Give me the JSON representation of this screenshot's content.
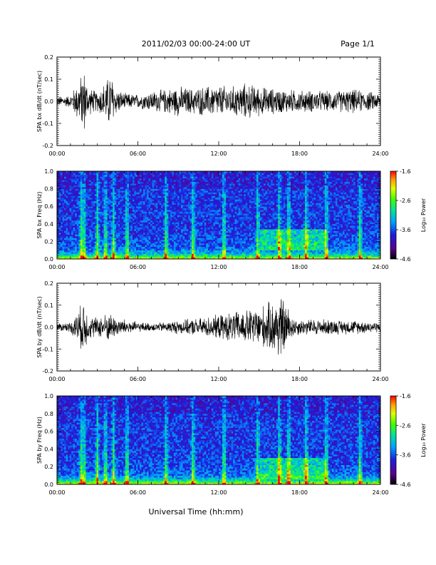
{
  "header": {
    "title": "2011/02/03  00:00-24:00 UT",
    "page": "Page 1/1"
  },
  "xlabel": "Universal Time (hh:mm)",
  "chart_data": [
    {
      "type": "line",
      "ylabel": "SPA bx dB/dt (nT/sec)",
      "xlim": [
        0,
        24
      ],
      "ylim": [
        -0.2,
        0.2
      ],
      "x_tick_labels": [
        "00:00",
        "06:00",
        "12:00",
        "18:00",
        "24:00"
      ],
      "y_tick_labels": [
        "-0.2",
        "-0.1",
        "0.0",
        "0.1",
        "0.2"
      ],
      "envelope": {
        "x_hours": [
          0,
          1,
          1.8,
          2,
          2.3,
          3,
          3.7,
          4,
          4.3,
          5,
          6,
          7,
          8,
          9,
          10,
          11,
          12,
          13,
          14,
          15,
          16,
          17,
          18,
          19,
          20,
          21,
          22,
          23,
          24
        ],
        "amplitude": [
          0.025,
          0.03,
          0.13,
          0.17,
          0.07,
          0.05,
          0.11,
          0.15,
          0.07,
          0.04,
          0.035,
          0.05,
          0.06,
          0.075,
          0.065,
          0.075,
          0.08,
          0.075,
          0.09,
          0.075,
          0.065,
          0.06,
          0.055,
          0.055,
          0.05,
          0.055,
          0.06,
          0.05,
          0.04
        ]
      }
    },
    {
      "type": "heatmap",
      "ylabel": "SPA bx Freq (Hz)",
      "xlim": [
        0,
        24
      ],
      "ylim": [
        0,
        1.0
      ],
      "x_tick_labels": [
        "00:00",
        "06:00",
        "12:00",
        "18:00",
        "24:00"
      ],
      "y_tick_labels": [
        "0.0",
        "0.2",
        "0.4",
        "0.6",
        "0.8",
        "1.0"
      ],
      "colorbar": {
        "label": "Log₁₀ Power",
        "ticks": [
          "-1.6",
          "-2.6",
          "-3.6",
          "-4.6"
        ],
        "range": [
          -4.6,
          -1.6
        ]
      },
      "bursts_hours": [
        1.8,
        2.0,
        3.0,
        3.6,
        4.2,
        5.2,
        8.1,
        10.1,
        12.4,
        14.9,
        16.5,
        17.2,
        18.5,
        20.0,
        22.5
      ],
      "enhanced_band": {
        "x_hours": [
          15,
          20
        ],
        "freq_hz": [
          0.1,
          0.35
        ]
      }
    },
    {
      "type": "line",
      "ylabel": "SPA by dB/dt (nT/sec)",
      "xlim": [
        0,
        24
      ],
      "ylim": [
        -0.2,
        0.2
      ],
      "x_tick_labels": [
        "00:00",
        "06:00",
        "12:00",
        "18:00",
        "24:00"
      ],
      "y_tick_labels": [
        "-0.2",
        "-0.1",
        "0.0",
        "0.1",
        "0.2"
      ],
      "envelope": {
        "x_hours": [
          0,
          1,
          1.8,
          2,
          2.3,
          3,
          3.7,
          4,
          4.3,
          5,
          6,
          7,
          8,
          9,
          10,
          11,
          12,
          13,
          14,
          15,
          16,
          16.5,
          17,
          17.5,
          18,
          19,
          20,
          21,
          22,
          23,
          24
        ],
        "amplitude": [
          0.02,
          0.025,
          0.11,
          0.15,
          0.06,
          0.05,
          0.07,
          0.07,
          0.05,
          0.04,
          0.025,
          0.02,
          0.025,
          0.035,
          0.04,
          0.05,
          0.06,
          0.075,
          0.085,
          0.1,
          0.13,
          0.17,
          0.12,
          0.05,
          0.04,
          0.04,
          0.04,
          0.035,
          0.035,
          0.03,
          0.025
        ]
      }
    },
    {
      "type": "heatmap",
      "ylabel": "SPA by Freq (Hz)",
      "xlim": [
        0,
        24
      ],
      "ylim": [
        0,
        1.0
      ],
      "x_tick_labels": [
        "00:00",
        "06:00",
        "12:00",
        "18:00",
        "24:00"
      ],
      "y_tick_labels": [
        "0.0",
        "0.2",
        "0.4",
        "0.6",
        "0.8",
        "1.0"
      ],
      "colorbar": {
        "label": "Log₁₀ Power",
        "ticks": [
          "-1.6",
          "-2.6",
          "-3.6",
          "-4.6"
        ],
        "range": [
          -4.6,
          -1.6
        ]
      },
      "bursts_hours": [
        1.8,
        2.0,
        3.0,
        3.6,
        4.2,
        5.2,
        8.1,
        10.1,
        12.4,
        14.9,
        16.5,
        17.2,
        18.5,
        20.0,
        22.5
      ],
      "enhanced_band": {
        "x_hours": [
          15,
          20
        ],
        "freq_hz": [
          0.05,
          0.3
        ]
      }
    }
  ]
}
